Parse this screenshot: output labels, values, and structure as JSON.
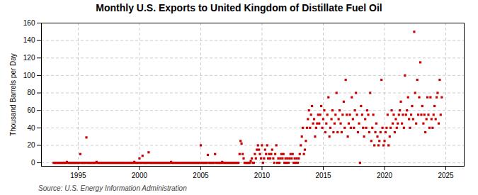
{
  "chart_data": {
    "type": "scatter",
    "title": "Monthly U.S. Exports to United Kingdom of Distillate Fuel Oil",
    "ylabel": "Thousand Barrels per Day",
    "source": "Source: U.S. Energy Information Administration",
    "color": "#cc0000",
    "marker": "square",
    "grid": true,
    "xlim": [
      1992.0,
      2026.5
    ],
    "ylim": [
      -4,
      160
    ],
    "xticks": [
      1995,
      2000,
      2005,
      2010,
      2015,
      2020,
      2025
    ],
    "yticks": [
      0,
      20,
      40,
      60,
      80,
      100,
      120,
      140,
      160
    ],
    "x": [
      1993.0,
      1993.08,
      1993.17,
      1993.25,
      1993.33,
      1993.42,
      1993.5,
      1993.58,
      1993.67,
      1993.75,
      1993.83,
      1993.92,
      1994.0,
      1994.08,
      1994.17,
      1994.25,
      1994.33,
      1994.42,
      1994.5,
      1994.58,
      1994.67,
      1994.75,
      1994.83,
      1994.92,
      1995.0,
      1995.08,
      1995.17,
      1995.25,
      1995.33,
      1995.42,
      1995.5,
      1995.58,
      1995.67,
      1995.75,
      1995.83,
      1995.92,
      1996.0,
      1996.08,
      1996.17,
      1996.25,
      1996.33,
      1996.42,
      1996.5,
      1996.58,
      1996.67,
      1996.75,
      1996.83,
      1996.92,
      1997.0,
      1997.08,
      1997.17,
      1997.25,
      1997.33,
      1997.42,
      1997.5,
      1997.58,
      1997.67,
      1997.75,
      1997.83,
      1997.92,
      1998.0,
      1998.08,
      1998.17,
      1998.25,
      1998.33,
      1998.42,
      1998.5,
      1998.58,
      1998.67,
      1998.75,
      1998.83,
      1998.92,
      1999.0,
      1999.08,
      1999.17,
      1999.25,
      1999.33,
      1999.42,
      1999.5,
      1999.58,
      1999.67,
      1999.75,
      1999.83,
      1999.92,
      2000.0,
      2000.08,
      2000.17,
      2000.25,
      2000.33,
      2000.42,
      2000.5,
      2000.58,
      2000.67,
      2000.75,
      2000.83,
      2000.92,
      2001.0,
      2001.08,
      2001.17,
      2001.25,
      2001.33,
      2001.42,
      2001.5,
      2001.58,
      2001.67,
      2001.75,
      2001.83,
      2001.92,
      2002.0,
      2002.08,
      2002.17,
      2002.25,
      2002.33,
      2002.42,
      2002.5,
      2002.58,
      2002.67,
      2002.75,
      2002.83,
      2002.92,
      2003.0,
      2003.08,
      2003.17,
      2003.25,
      2003.33,
      2003.42,
      2003.5,
      2003.58,
      2003.67,
      2003.75,
      2003.83,
      2003.92,
      2004.0,
      2004.08,
      2004.17,
      2004.25,
      2004.33,
      2004.42,
      2004.5,
      2004.58,
      2004.67,
      2004.75,
      2004.83,
      2004.92,
      2005.0,
      2005.08,
      2005.17,
      2005.25,
      2005.33,
      2005.42,
      2005.5,
      2005.58,
      2005.67,
      2005.75,
      2005.83,
      2005.92,
      2006.0,
      2006.08,
      2006.17,
      2006.25,
      2006.33,
      2006.42,
      2006.5,
      2006.58,
      2006.67,
      2006.75,
      2006.83,
      2006.92,
      2007.0,
      2007.08,
      2007.17,
      2007.25,
      2007.33,
      2007.42,
      2007.5,
      2007.58,
      2007.67,
      2007.75,
      2007.83,
      2007.92,
      2008.0,
      2008.08,
      2008.17,
      2008.25,
      2008.33,
      2008.42,
      2008.5,
      2008.58,
      2008.67,
      2008.75,
      2008.83,
      2008.92,
      2009.0,
      2009.08,
      2009.17,
      2009.25,
      2009.33,
      2009.42,
      2009.5,
      2009.58,
      2009.67,
      2009.75,
      2009.83,
      2009.92,
      2010.0,
      2010.08,
      2010.17,
      2010.25,
      2010.33,
      2010.42,
      2010.5,
      2010.58,
      2010.67,
      2010.75,
      2010.83,
      2010.92,
      2011.0,
      2011.08,
      2011.17,
      2011.25,
      2011.33,
      2011.42,
      2011.5,
      2011.58,
      2011.67,
      2011.75,
      2011.83,
      2011.92,
      2012.0,
      2012.08,
      2012.17,
      2012.25,
      2012.33,
      2012.42,
      2012.5,
      2012.58,
      2012.67,
      2012.75,
      2012.83,
      2012.92,
      2013.0,
      2013.08,
      2013.17,
      2013.25,
      2013.33,
      2013.42,
      2013.5,
      2013.58,
      2013.67,
      2013.75,
      2013.83,
      2013.92,
      2014.0,
      2014.08,
      2014.17,
      2014.25,
      2014.33,
      2014.42,
      2014.5,
      2014.58,
      2014.67,
      2014.75,
      2014.83,
      2014.92,
      2015.0,
      2015.08,
      2015.17,
      2015.25,
      2015.33,
      2015.42,
      2015.5,
      2015.58,
      2015.67,
      2015.75,
      2015.83,
      2015.92,
      2016.0,
      2016.08,
      2016.17,
      2016.25,
      2016.33,
      2016.42,
      2016.5,
      2016.58,
      2016.67,
      2016.75,
      2016.83,
      2016.92,
      2017.0,
      2017.08,
      2017.17,
      2017.25,
      2017.33,
      2017.42,
      2017.5,
      2017.58,
      2017.67,
      2017.75,
      2017.83,
      2017.92,
      2018.0,
      2018.08,
      2018.17,
      2018.25,
      2018.33,
      2018.42,
      2018.5,
      2018.58,
      2018.67,
      2018.75,
      2018.83,
      2018.92,
      2019.0,
      2019.08,
      2019.17,
      2019.25,
      2019.33,
      2019.42,
      2019.5,
      2019.58,
      2019.67,
      2019.75,
      2019.83,
      2019.92,
      2020.0,
      2020.08,
      2020.17,
      2020.25,
      2020.33,
      2020.42,
      2020.5,
      2020.58,
      2020.67,
      2020.75,
      2020.83,
      2020.92,
      2021.0,
      2021.08,
      2021.17,
      2021.25,
      2021.33,
      2021.42,
      2021.5,
      2021.58,
      2021.67,
      2021.75,
      2021.83,
      2021.92,
      2022.0,
      2022.08,
      2022.17,
      2022.25,
      2022.33,
      2022.42,
      2022.5,
      2022.58,
      2022.67,
      2022.75,
      2022.83,
      2022.92,
      2023.0,
      2023.08,
      2023.17,
      2023.25,
      2023.33,
      2023.42,
      2023.5,
      2023.58,
      2023.67,
      2023.75,
      2023.83,
      2023.92,
      2024.0,
      2024.08,
      2024.17,
      2024.25,
      2024.33,
      2024.42,
      2024.5,
      2024.58,
      2024.67
    ],
    "values": [
      0,
      0,
      0,
      0,
      0,
      0,
      0,
      0,
      0,
      0,
      0,
      0,
      0,
      1,
      0,
      0,
      0,
      0,
      0,
      0,
      0,
      0,
      0,
      0,
      0,
      0,
      10,
      0,
      0,
      0,
      0,
      0,
      29,
      0,
      0,
      0,
      0,
      0,
      0,
      0,
      0,
      0,
      1,
      0,
      0,
      0,
      0,
      0,
      0,
      0,
      0,
      0,
      0,
      0,
      0,
      0,
      0,
      0,
      0,
      0,
      0,
      0,
      0,
      0,
      0,
      0,
      0,
      0,
      0,
      0,
      0,
      0,
      0,
      0,
      0,
      0,
      0,
      0,
      0,
      1,
      0,
      0,
      0,
      0,
      5,
      0,
      0,
      8,
      0,
      0,
      0,
      0,
      0,
      12,
      0,
      0,
      0,
      0,
      0,
      0,
      0,
      0,
      0,
      0,
      0,
      0,
      0,
      0,
      0,
      0,
      0,
      0,
      0,
      0,
      0,
      1,
      0,
      0,
      0,
      0,
      0,
      0,
      0,
      0,
      0,
      0,
      0,
      0,
      0,
      0,
      0,
      0,
      0,
      0,
      0,
      0,
      0,
      0,
      0,
      0,
      0,
      0,
      0,
      0,
      20,
      0,
      0,
      0,
      0,
      0,
      0,
      9,
      0,
      0,
      0,
      0,
      0,
      0,
      10,
      0,
      0,
      0,
      0,
      0,
      0,
      1,
      0,
      0,
      0,
      0,
      0,
      0,
      0,
      0,
      0,
      0,
      0,
      0,
      0,
      0,
      0,
      0,
      10,
      25,
      22,
      10,
      5,
      0,
      0,
      0,
      0,
      0,
      0,
      2,
      5,
      0,
      0,
      10,
      5,
      15,
      20,
      15,
      10,
      5,
      20,
      0,
      5,
      15,
      10,
      20,
      5,
      10,
      5,
      10,
      15,
      5,
      0,
      10,
      20,
      0,
      5,
      0,
      5,
      10,
      5,
      10,
      0,
      5,
      0,
      5,
      0,
      5,
      10,
      5,
      10,
      0,
      5,
      0,
      5,
      0,
      5,
      10,
      20,
      30,
      40,
      10,
      15,
      25,
      40,
      50,
      60,
      40,
      55,
      65,
      45,
      50,
      30,
      40,
      45,
      55,
      45,
      55,
      65,
      40,
      50,
      60,
      35,
      45,
      55,
      75,
      30,
      40,
      50,
      60,
      35,
      45,
      55,
      80,
      35,
      50,
      60,
      45,
      35,
      55,
      70,
      40,
      95,
      55,
      30,
      45,
      55,
      40,
      75,
      50,
      40,
      60,
      80,
      55,
      35,
      45,
      0,
      65,
      55,
      40,
      30,
      50,
      40,
      60,
      55,
      35,
      80,
      25,
      40,
      55,
      20,
      35,
      45,
      30,
      20,
      25,
      35,
      95,
      40,
      20,
      25,
      35,
      40,
      55,
      20,
      30,
      40,
      60,
      45,
      55,
      35,
      50,
      40,
      45,
      55,
      60,
      70,
      45,
      55,
      40,
      100,
      55,
      60,
      75,
      50,
      40,
      55,
      65,
      50,
      150,
      80,
      45,
      95,
      55,
      75,
      115,
      55,
      65,
      45,
      55,
      35,
      50,
      75,
      55,
      40,
      75,
      50,
      40,
      55,
      65,
      50,
      75,
      80,
      45,
      95,
      55,
      75
    ]
  }
}
